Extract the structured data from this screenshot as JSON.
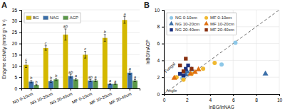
{
  "chart_data": [
    {
      "type": "bar",
      "title": "A",
      "categories": [
        "NG 0-10cm",
        "NG 10-20cm",
        "NG 20-40cm",
        "MF 0-10cm",
        "MF 10-20cm",
        "MF 20-40cm"
      ],
      "series": [
        {
          "name": "BG",
          "color": "#D4B800",
          "values": [
            10.5,
            18.0,
            24.0,
            15.0,
            22.5,
            30.5
          ],
          "errors": [
            1.2,
            1.0,
            2.5,
            1.5,
            1.5,
            1.5
          ],
          "annotations": [
            "c",
            "c",
            "ab",
            "c",
            "b",
            "a"
          ]
        },
        {
          "name": "NAG",
          "color": "#3A6EA8",
          "values": [
            3.0,
            3.2,
            5.5,
            3.5,
            2.0,
            7.0
          ],
          "errors": [
            0.5,
            0.5,
            0.8,
            0.5,
            0.3,
            0.8
          ],
          "annotations": [
            "b",
            "b",
            "ab",
            "ab",
            "a",
            "a"
          ]
        },
        {
          "name": "ACP",
          "color": "#5A9848",
          "values": [
            1.5,
            4.0,
            4.0,
            3.5,
            2.0,
            3.5
          ],
          "errors": [
            0.3,
            0.5,
            0.5,
            0.5,
            0.2,
            0.5
          ],
          "annotations": [
            "b",
            "b",
            "a",
            "a",
            "a",
            "a"
          ]
        }
      ],
      "ylabel": "Enzyme activity (nmol g⁻¹ h⁻¹)",
      "ylim": [
        0,
        35
      ],
      "yticks": [
        0,
        5,
        10,
        15,
        20,
        25,
        30,
        35
      ],
      "grid": true,
      "legend": "upper left"
    },
    {
      "type": "scatter",
      "title": "B",
      "xlabel": "lnBG/lnNAG",
      "ylabel": "lnBG/lnACP",
      "xlim": [
        0,
        10
      ],
      "ylim": [
        0,
        10
      ],
      "xticks": [
        0,
        2,
        4,
        6,
        8,
        10
      ],
      "yticks": [
        0,
        2,
        4,
        6,
        8,
        10
      ],
      "grid": true,
      "legend": "upper left",
      "series": [
        {
          "name": "NG 0-10cm",
          "color": "#8EC8E8",
          "marker": "circle",
          "x": [
            1.7,
            2.1,
            1.6,
            6.2,
            5.0
          ],
          "values": [
            2.1,
            2.4,
            1.9,
            6.1,
            3.5
          ]
        },
        {
          "name": "NG 10-20cm",
          "color": "#3A6EA8",
          "marker": "triangle",
          "x": [
            2.0,
            1.9,
            2.4,
            8.8
          ],
          "values": [
            2.7,
            2.3,
            2.9,
            2.4
          ]
        },
        {
          "name": "NG 20-40cm",
          "color": "#1A3080",
          "marker": "square",
          "x": [
            1.4,
            1.9,
            1.7,
            2.1
          ],
          "values": [
            2.4,
            3.0,
            2.2,
            3.4
          ]
        },
        {
          "name": "MF 0-10cm",
          "color": "#F0B830",
          "marker": "circle",
          "x": [
            1.1,
            2.4,
            1.7,
            3.4,
            4.4
          ],
          "values": [
            2.0,
            2.4,
            1.7,
            3.0,
            3.7
          ]
        },
        {
          "name": "MF 10-20cm",
          "color": "#E07010",
          "marker": "triangle",
          "x": [
            0.9,
            2.7,
            3.0,
            2.3
          ],
          "values": [
            1.9,
            2.6,
            2.9,
            2.4
          ]
        },
        {
          "name": "MF 20-40cm",
          "color": "#883010",
          "marker": "square",
          "x": [
            1.4,
            1.9,
            1.7,
            2.4
          ],
          "values": [
            3.4,
            4.2,
            2.7,
            3.0
          ]
        },
        {
          "type": "line",
          "color": "#444444",
          "line_style": "dashed",
          "x": [
            0,
            10
          ],
          "values": [
            0,
            10
          ]
        }
      ],
      "annotations": [
        {
          "text": "Fungal",
          "x": 0.18,
          "y": 2.5
        },
        {
          "text": "Angle",
          "x": 0.18,
          "y": 0.25
        }
      ]
    }
  ]
}
